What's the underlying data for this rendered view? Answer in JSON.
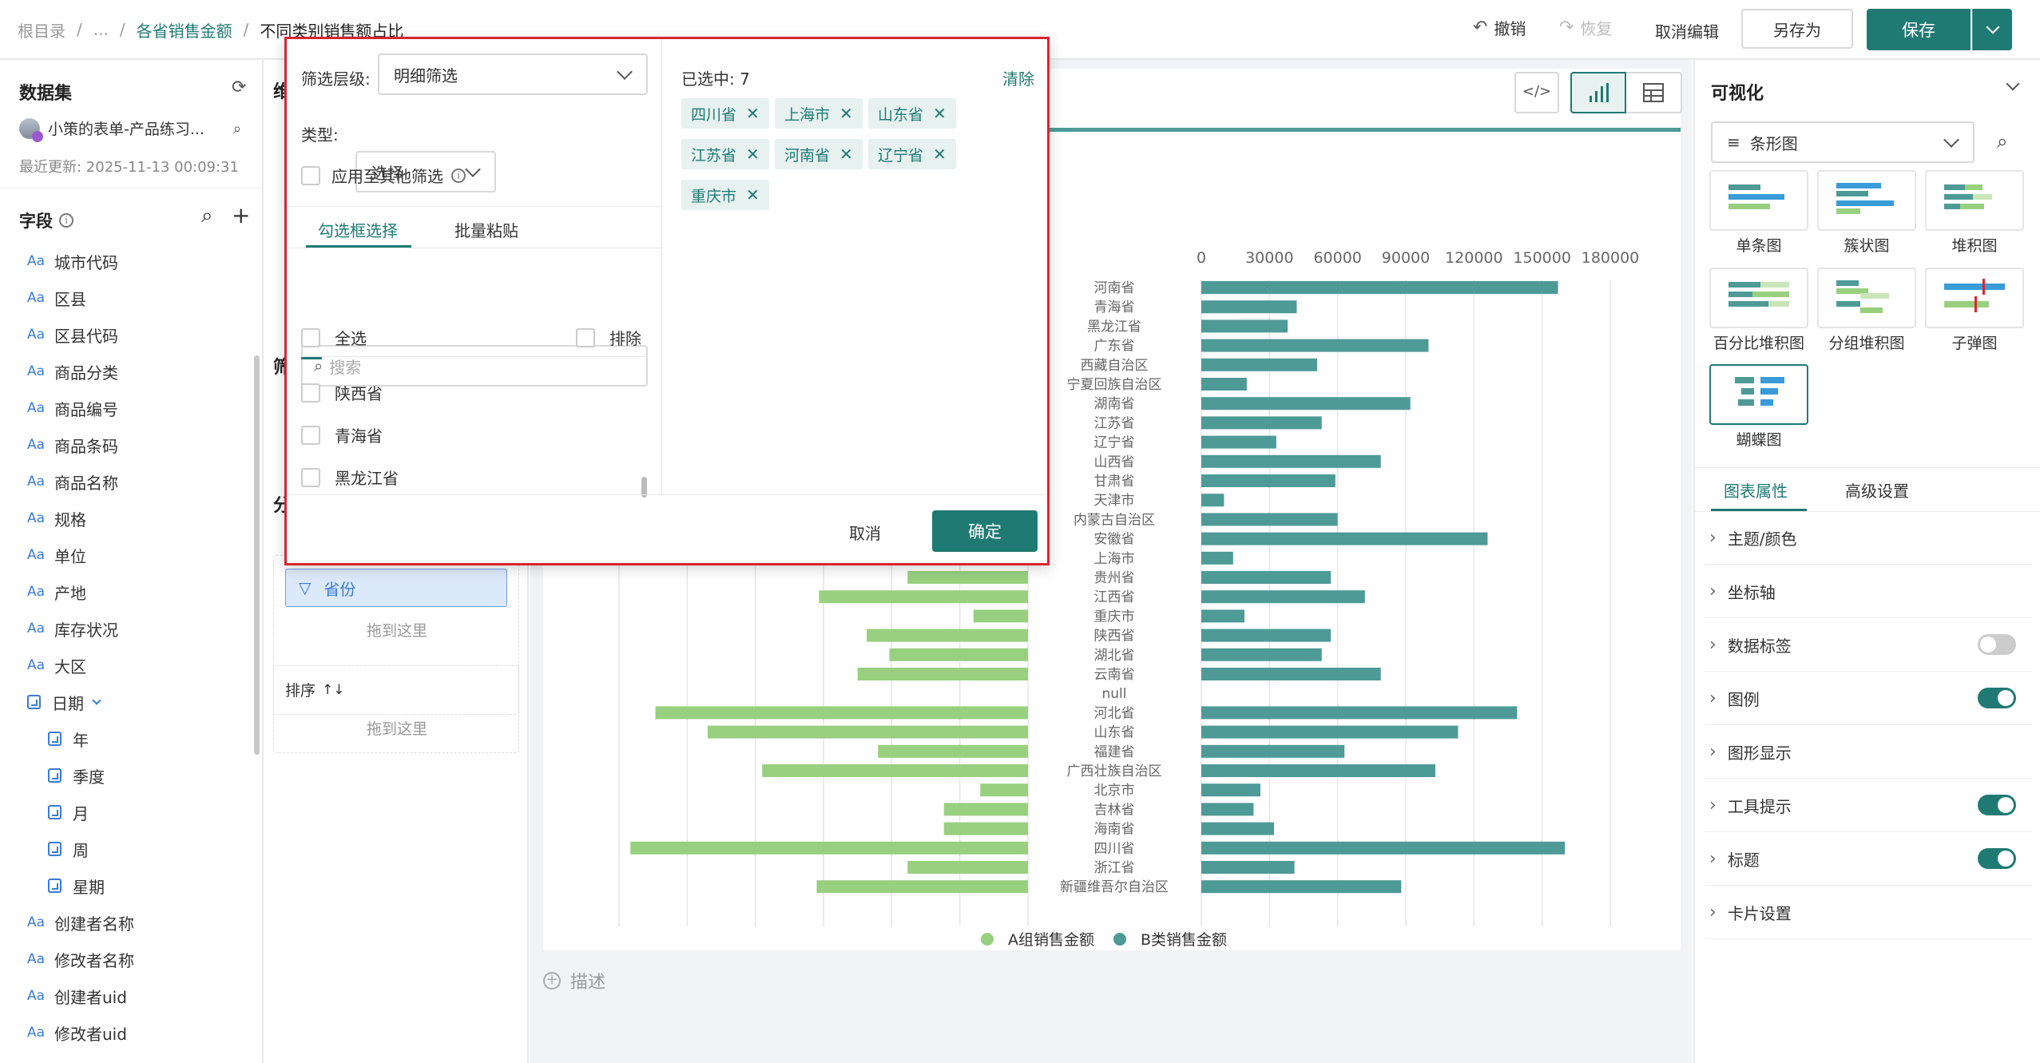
{
  "breadcrumb": {
    "root": "根目录",
    "sep": "/",
    "ellipsis": "...",
    "parent": "各省销售金额",
    "current": "不同类别销售额占比"
  },
  "toolbar": {
    "undo": "撤销",
    "redo": "恢复",
    "cancel_edit": "取消编辑",
    "save_as": "另存为",
    "save": "保存"
  },
  "dataset": {
    "title": "数据集",
    "name": "小策的表单-产品练习...",
    "updated": "最近更新: 2025-11-13 00:09:31"
  },
  "fields": {
    "title": "字段",
    "items": [
      "城市代码",
      "区县",
      "区县代码",
      "商品分类",
      "商品编号",
      "商品条码",
      "商品名称",
      "规格",
      "单位",
      "产地",
      "库存状况",
      "大区"
    ],
    "date_label": "日期",
    "date_children": [
      "年",
      "季度",
      "月",
      "周",
      "星期"
    ],
    "tail_items": [
      "创建者名称",
      "修改者名称",
      "创建者uid",
      "修改者uid"
    ],
    "aa": "Aa"
  },
  "mid": {
    "filter_chip": "省份",
    "drop_here_1": "拖到这里",
    "sort_label": "排序",
    "drop_here_2": "拖到这里",
    "partial_1": "维",
    "partial_2": "筛",
    "partial_3": "分"
  },
  "popup": {
    "level_label": "筛选层级:",
    "level_value": "明细筛选",
    "type_label": "类型:",
    "type_value": "选择",
    "apply_others": "应用至其他筛选",
    "tab_checkbox": "勾选框选择",
    "tab_paste": "批量粘贴",
    "search_placeholder": "搜索",
    "select_all": "全选",
    "exclude": "排除",
    "options": [
      "陕西省",
      "青海省",
      "黑龙江省"
    ],
    "selected_count": "已选中: 7",
    "clear": "清除",
    "tags": [
      "四川省",
      "上海市",
      "山东省",
      "江苏省",
      "河南省",
      "辽宁省",
      "重庆市"
    ],
    "cancel": "取消",
    "ok": "确定"
  },
  "canvas": {
    "describe": "描述"
  },
  "right": {
    "title": "可视化",
    "chart_type": "条形图",
    "chart_types": [
      "单条图",
      "簇状图",
      "堆积图",
      "百分比堆积图",
      "分组堆积图",
      "子弹图",
      "蝴蝶图"
    ],
    "tab_props": "图表属性",
    "tab_advanced": "高级设置",
    "props": [
      "主题/颜色",
      "坐标轴",
      "数据标签",
      "图例",
      "图形显示",
      "工具提示",
      "标题",
      "卡片设置"
    ],
    "toggles": {
      "数据标签": false,
      "图例": true,
      "工具提示": true,
      "标题": true
    }
  },
  "colors": {
    "accent": "#1f7a73",
    "seriesA": "#98d07f",
    "seriesB": "#4e9a97",
    "alert": "#d9252f"
  },
  "chart_data": {
    "type": "bar",
    "subtype": "butterfly",
    "categories": [
      "河南省",
      "青海省",
      "黑龙江省",
      "广东省",
      "西藏自治区",
      "宁夏回族自治区",
      "湖南省",
      "江苏省",
      "辽宁省",
      "山西省",
      "甘肃省",
      "天津市",
      "内蒙古自治区",
      "安徽省",
      "上海市",
      "贵州省",
      "江西省",
      "重庆市",
      "陕西省",
      "湖北省",
      "云南省",
      "null",
      "河北省",
      "山东省",
      "福建省",
      "广西壮族自治区",
      "北京市",
      "吉林省",
      "海南省",
      "四川省",
      "浙江省",
      "新疆维吾尔自治区"
    ],
    "series": [
      {
        "name": "A组销售金额",
        "values": [
          null,
          null,
          null,
          null,
          null,
          null,
          null,
          null,
          null,
          null,
          null,
          null,
          null,
          null,
          null,
          53000,
          92000,
          24000,
          71000,
          61000,
          75000,
          0,
          164000,
          141000,
          66000,
          117000,
          21000,
          37000,
          37000,
          175000,
          53000,
          93000
        ]
      },
      {
        "name": "B类销售金额",
        "values": [
          157000,
          42000,
          38000,
          100000,
          51000,
          20000,
          92000,
          53000,
          33000,
          79000,
          59000,
          10000,
          60000,
          126000,
          14000,
          57000,
          72000,
          19000,
          57000,
          53000,
          79000,
          0,
          139000,
          113000,
          63000,
          103000,
          26000,
          23000,
          32000,
          160000,
          41000,
          88000
        ]
      }
    ],
    "xticks": [
      "0",
      "30000",
      "60000",
      "90000",
      "120000",
      "150000",
      "180000"
    ],
    "xlim": [
      0,
      180000
    ],
    "legend": "bottom",
    "grid": true
  }
}
